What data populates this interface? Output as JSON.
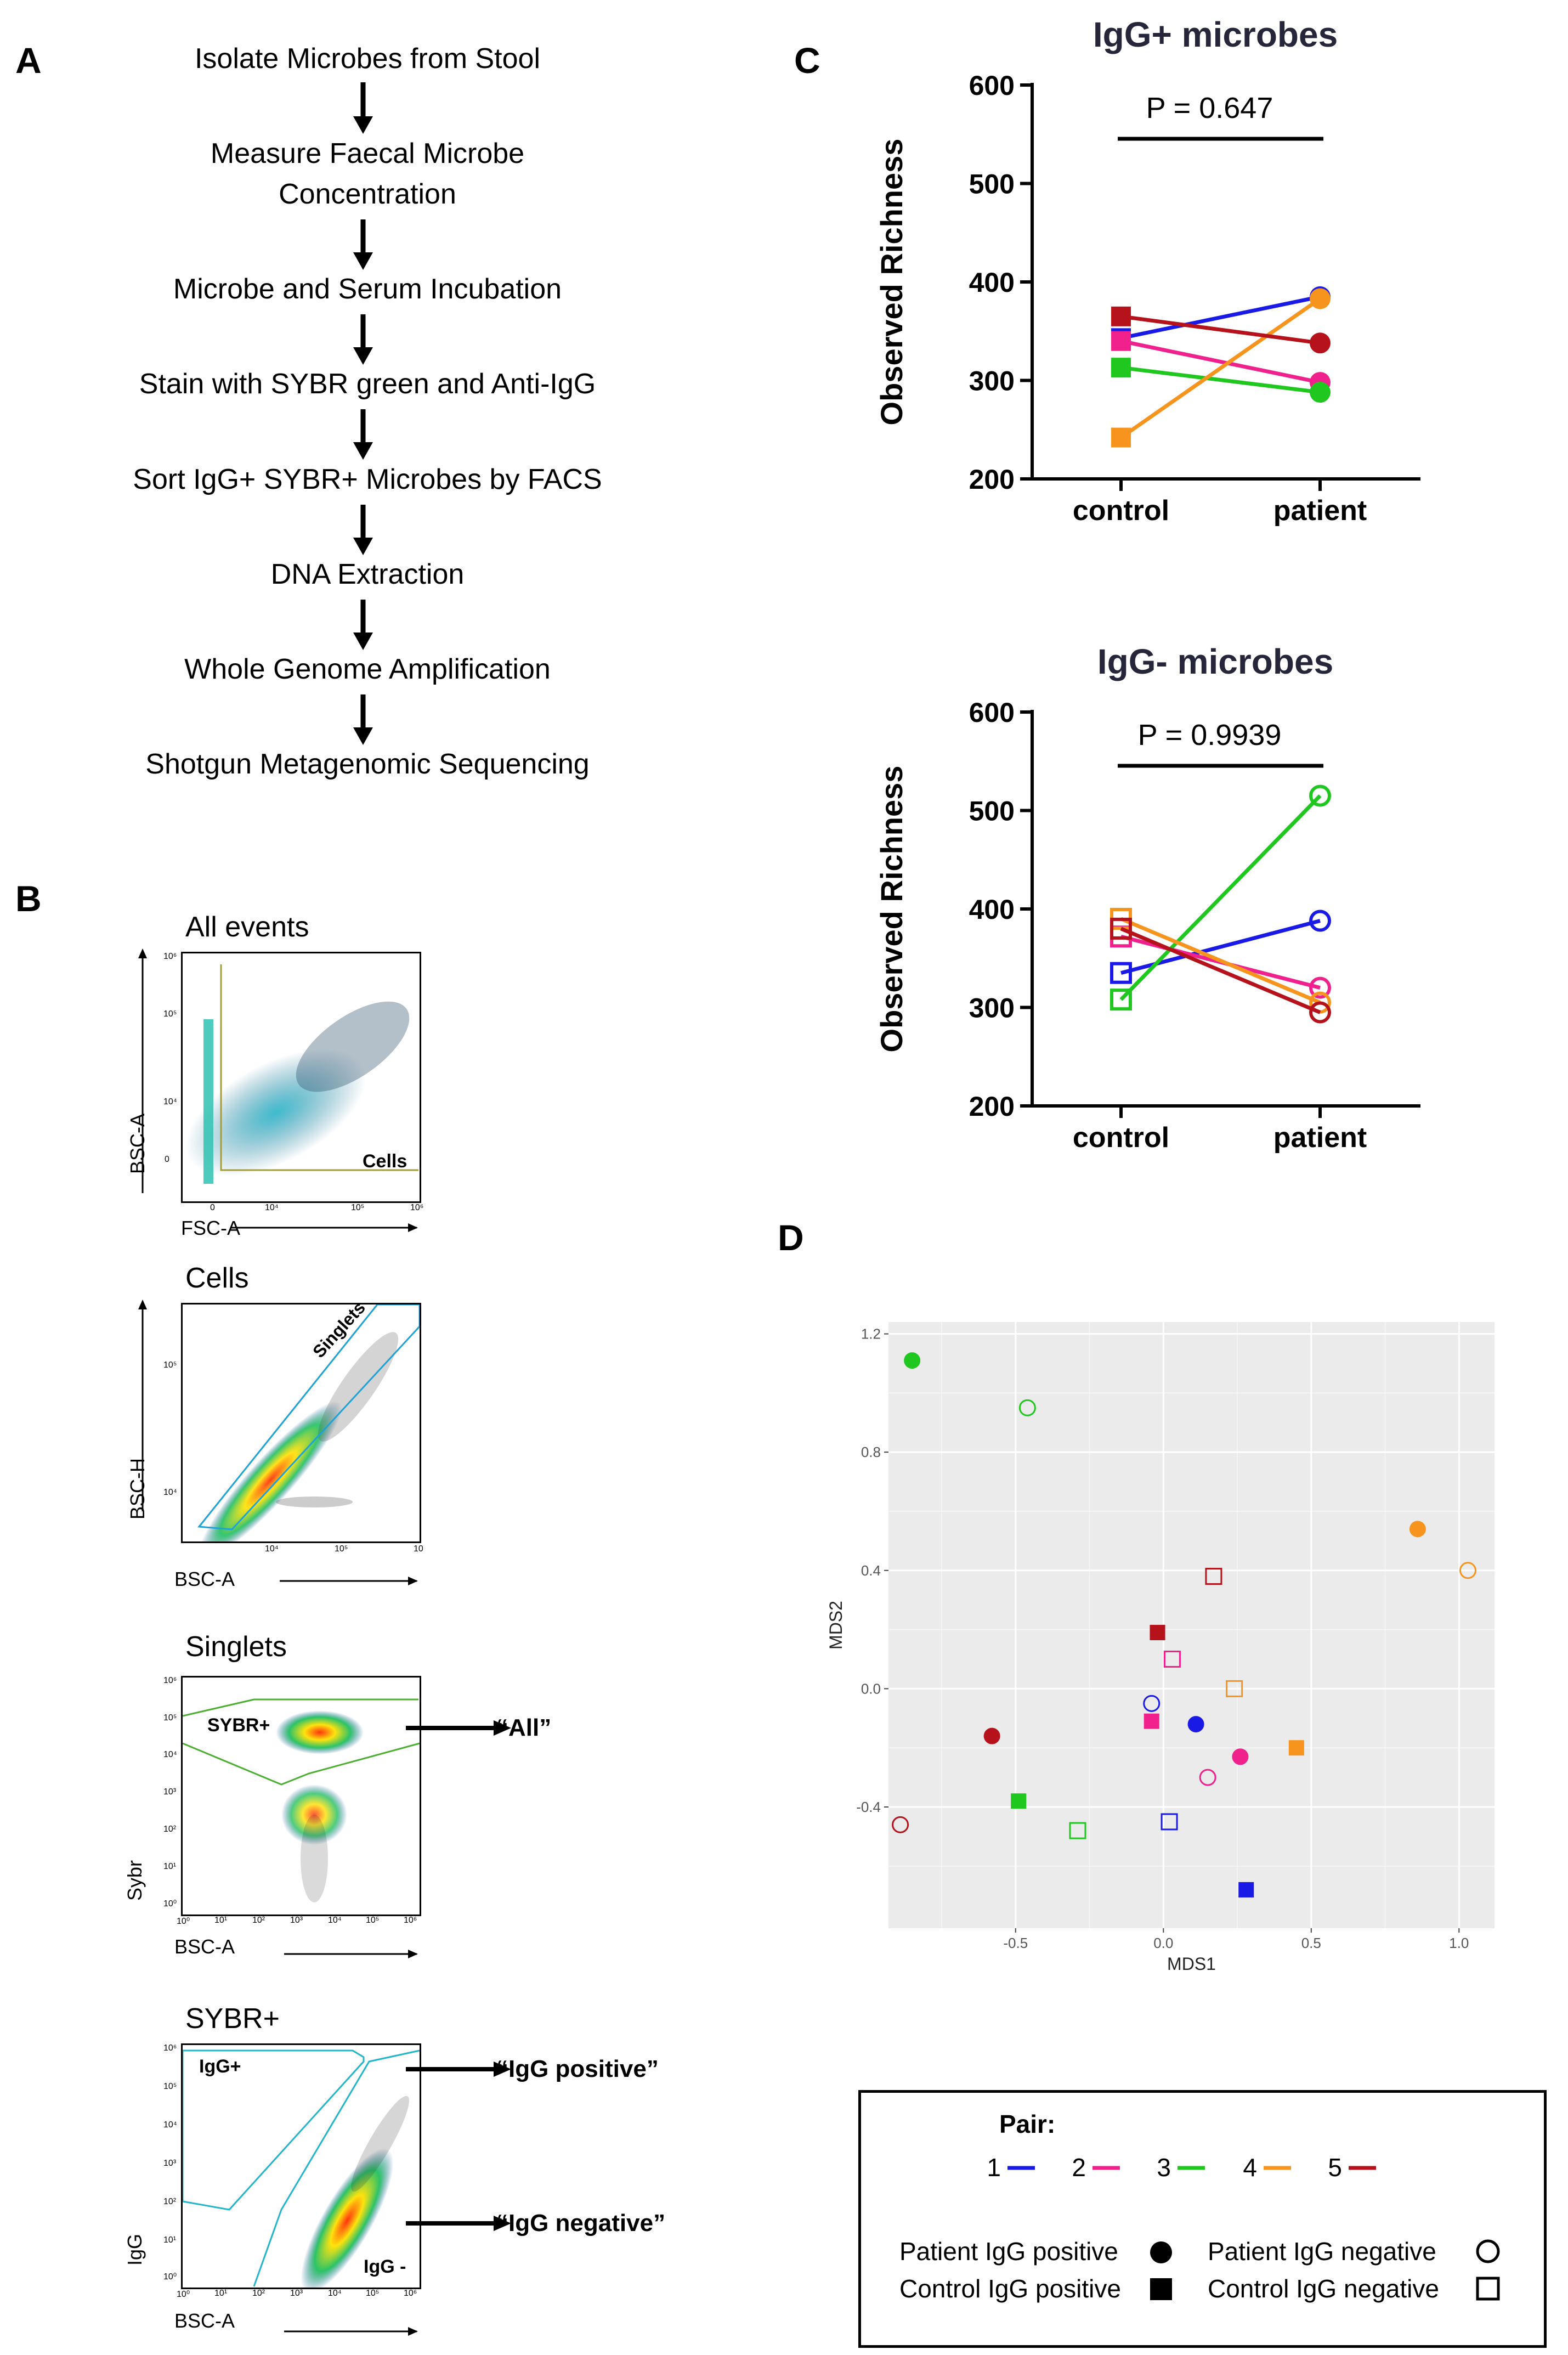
{
  "panels": {
    "a": "A",
    "b": "B",
    "c": "C",
    "d": "D"
  },
  "protocol_steps": [
    "Isolate Microbes from Stool",
    "Measure Faecal Microbe",
    "Concentration",
    "Microbe and Serum Incubation",
    "Stain with SYBR green and Anti-IgG",
    "Sort IgG+ SYBR+ Microbes by FACS",
    "DNA Extraction",
    "Whole Genome Amplification",
    "Shotgun Metagenomic Sequencing"
  ],
  "gating": {
    "p1": {
      "title": "All events",
      "gate": "Cells",
      "xlabel": "FSC-A",
      "ylabel": "BSC-A",
      "xticks": [
        "0",
        "10⁴",
        "10⁵",
        "10⁶"
      ],
      "yticks": [
        "10⁶",
        "10⁵",
        "10⁴",
        "0"
      ]
    },
    "p2": {
      "title": "Cells",
      "gate": "Singlets",
      "xlabel": "BSC-A",
      "ylabel": "BSC-H",
      "xticks": [
        "10⁴",
        "10⁵",
        "10"
      ],
      "yticks": [
        "10⁵",
        "10⁴"
      ]
    },
    "p3": {
      "title": "Singlets",
      "gate": "SYBR+",
      "xlabel": "BSC-A",
      "ylabel": "Sybr",
      "xticks": [
        "10⁰",
        "10¹",
        "10²",
        "10³",
        "10⁴",
        "10⁵",
        "10⁶"
      ],
      "yticks": [
        "10⁶",
        "10⁵",
        "10⁴",
        "10³",
        "10²",
        "10¹",
        "10⁰"
      ],
      "arrow": "“All”"
    },
    "p4": {
      "title": "SYBR+",
      "gate_pos": "IgG+",
      "gate_neg": "IgG -",
      "xlabel": "BSC-A",
      "ylabel": "IgG",
      "xticks": [
        "10⁰",
        "10¹",
        "10²",
        "10³",
        "10⁴",
        "10⁵",
        "10⁶"
      ],
      "yticks": [
        "10⁶",
        "10⁵",
        "10⁴",
        "10³",
        "10²",
        "10¹",
        "10⁰"
      ],
      "arrow_pos": "“IgG positive”",
      "arrow_neg": "“IgG negative”"
    }
  },
  "chart_data": [
    {
      "type": "line",
      "title": "IgG+ microbes",
      "ylabel": "Observed Richness",
      "categories": [
        "control",
        "patient"
      ],
      "ylim": [
        200,
        600
      ],
      "yticks": [
        200,
        300,
        400,
        500,
        600
      ],
      "p_value": "P = 0.647",
      "marker": "filled",
      "series": [
        {
          "name": "1",
          "color": "#1a1ae6",
          "values": [
            343,
            385
          ]
        },
        {
          "name": "2",
          "color": "#f0208c",
          "values": [
            340,
            298
          ]
        },
        {
          "name": "3",
          "color": "#1fc71f",
          "values": [
            313,
            288
          ]
        },
        {
          "name": "4",
          "color": "#f7941d",
          "values": [
            242,
            383
          ]
        },
        {
          "name": "5",
          "color": "#b5121b",
          "values": [
            365,
            338
          ]
        }
      ]
    },
    {
      "type": "line",
      "title": "IgG- microbes",
      "ylabel": "Observed Richness",
      "categories": [
        "control",
        "patient"
      ],
      "ylim": [
        200,
        600
      ],
      "yticks": [
        200,
        300,
        400,
        500,
        600
      ],
      "p_value": "P = 0.9939",
      "marker": "open",
      "series": [
        {
          "name": "1",
          "color": "#1a1ae6",
          "values": [
            335,
            388
          ]
        },
        {
          "name": "2",
          "color": "#f0208c",
          "values": [
            372,
            320
          ]
        },
        {
          "name": "3",
          "color": "#1fc71f",
          "values": [
            308,
            515
          ]
        },
        {
          "name": "4",
          "color": "#f7941d",
          "values": [
            390,
            305
          ]
        },
        {
          "name": "5",
          "color": "#b5121b",
          "values": [
            380,
            295
          ]
        }
      ]
    },
    {
      "type": "scatter",
      "xlabel": "MDS1",
      "ylabel": "MDS2",
      "xlim": [
        -0.93,
        1.12
      ],
      "ylim": [
        -0.81,
        1.24
      ],
      "xticks": [
        -0.5,
        0.0,
        0.5,
        1.0
      ],
      "xtick_labels": [
        "-0.5",
        "0.0",
        "0.5",
        "1.0"
      ],
      "yticks": [
        -0.4,
        0.0,
        0.4,
        0.8,
        1.2
      ],
      "ytick_labels": [
        "-0.4",
        "0.0",
        "0.4",
        "0.8",
        "1.2"
      ],
      "points": [
        {
          "pair": 3,
          "group": "patient_pos",
          "x": -0.85,
          "y": 1.11
        },
        {
          "pair": 3,
          "group": "patient_neg",
          "x": -0.46,
          "y": 0.95
        },
        {
          "pair": 3,
          "group": "control_pos",
          "x": -0.49,
          "y": -0.38
        },
        {
          "pair": 3,
          "group": "control_neg",
          "x": -0.29,
          "y": -0.48
        },
        {
          "pair": 4,
          "group": "patient_pos",
          "x": 0.86,
          "y": 0.54
        },
        {
          "pair": 4,
          "group": "patient_neg",
          "x": 1.03,
          "y": 0.4
        },
        {
          "pair": 4,
          "group": "control_pos",
          "x": 0.45,
          "y": -0.2
        },
        {
          "pair": 4,
          "group": "control_neg",
          "x": 0.24,
          "y": 0.0
        },
        {
          "pair": 5,
          "group": "patient_pos",
          "x": -0.58,
          "y": -0.16
        },
        {
          "pair": 5,
          "group": "patient_neg",
          "x": -0.89,
          "y": -0.46
        },
        {
          "pair": 5,
          "group": "control_pos",
          "x": -0.02,
          "y": 0.19
        },
        {
          "pair": 5,
          "group": "control_neg",
          "x": 0.17,
          "y": 0.38
        },
        {
          "pair": 2,
          "group": "patient_pos",
          "x": 0.26,
          "y": -0.23
        },
        {
          "pair": 2,
          "group": "patient_neg",
          "x": 0.15,
          "y": -0.3
        },
        {
          "pair": 2,
          "group": "control_pos",
          "x": -0.04,
          "y": -0.11
        },
        {
          "pair": 2,
          "group": "control_neg",
          "x": 0.03,
          "y": 0.1
        },
        {
          "pair": 1,
          "group": "patient_pos",
          "x": 0.11,
          "y": -0.12
        },
        {
          "pair": 1,
          "group": "patient_neg",
          "x": -0.04,
          "y": -0.05
        },
        {
          "pair": 1,
          "group": "control_pos",
          "x": 0.28,
          "y": -0.68
        },
        {
          "pair": 1,
          "group": "control_neg",
          "x": 0.02,
          "y": -0.45
        }
      ]
    }
  ],
  "legend": {
    "title": "Pair:",
    "pairs": [
      {
        "label": "1",
        "color": "#1a1ae6"
      },
      {
        "label": "2",
        "color": "#f0208c"
      },
      {
        "label": "3",
        "color": "#1fc71f"
      },
      {
        "label": "4",
        "color": "#f7941d"
      },
      {
        "label": "5",
        "color": "#b5121b"
      }
    ],
    "patient_pos": "Patient IgG positive",
    "patient_neg": "Patient IgG negative",
    "control_pos": "Control IgG positive",
    "control_neg": "Control IgG negative"
  }
}
